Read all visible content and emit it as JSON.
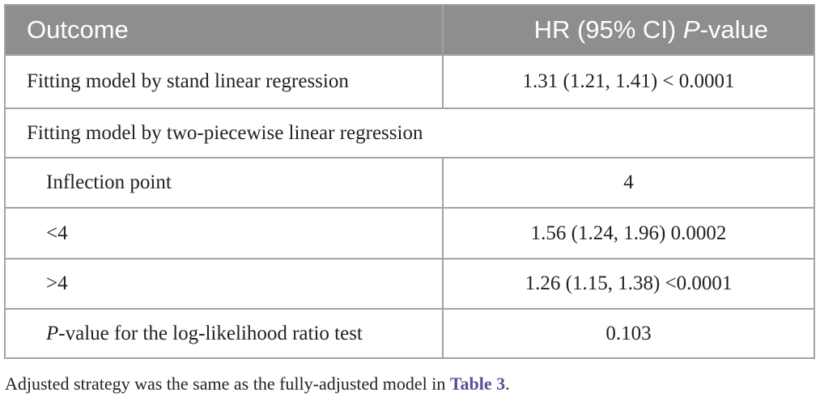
{
  "header": {
    "columns": [
      "Outcome",
      [
        "HR (95% CI) ",
        "P",
        "-value"
      ]
    ]
  },
  "table": {
    "rows": [
      [
        "Fitting model by stand linear regression",
        "1.31 (1.21, 1.41) < 0.0001"
      ],
      [
        "Fitting model by two-piecewise linear regression"
      ],
      [
        "Inflection point",
        "4"
      ],
      [
        "<4",
        "1.56 (1.24, 1.96) 0.0002"
      ],
      [
        ">4",
        "1.26 (1.15, 1.38) <0.0001"
      ],
      [
        [
          "P",
          "-value for the log-likelihood ratio test"
        ],
        "0.103"
      ]
    ]
  },
  "footnote": [
    "Adjusted strategy was the same as the fully-adjusted model in ",
    "Table 3",
    "."
  ]
}
